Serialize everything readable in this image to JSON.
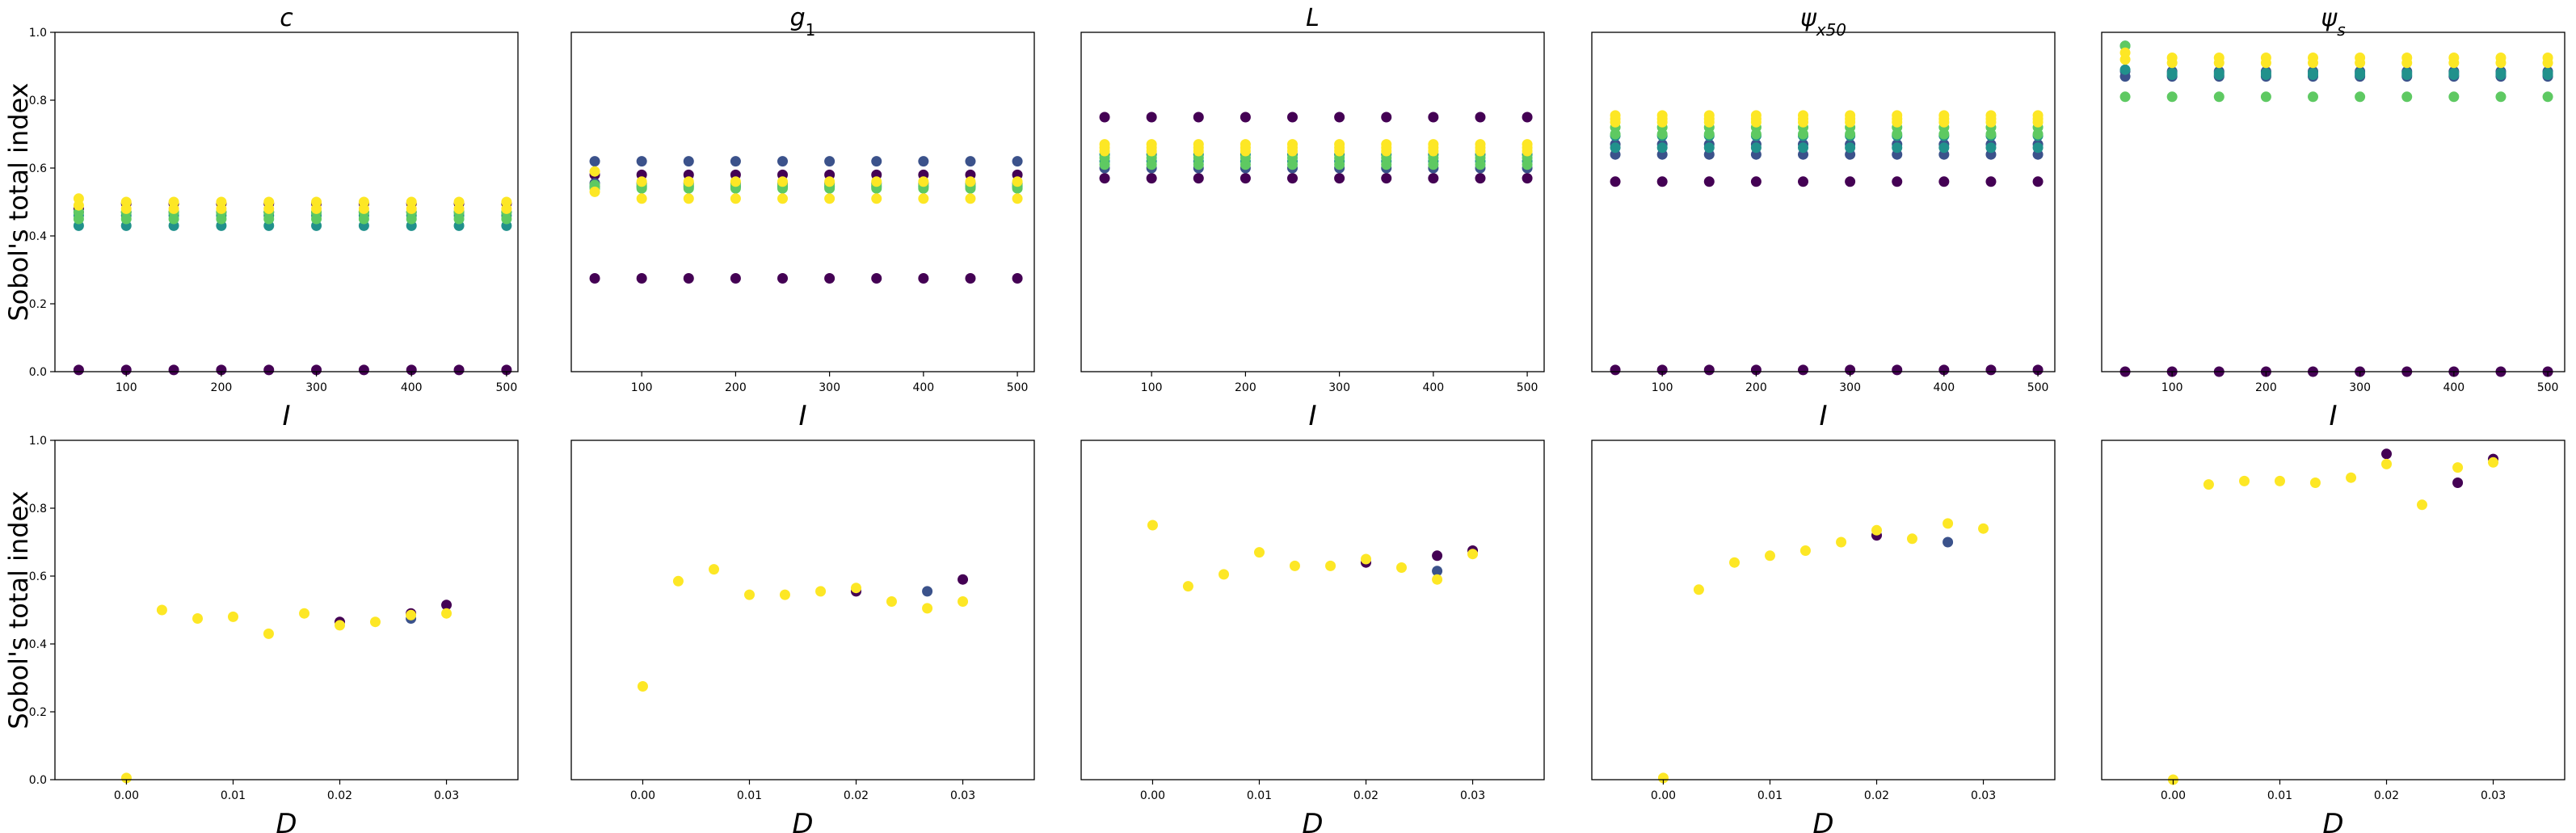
{
  "figure": {
    "ylabel": "Sobol's total index"
  },
  "colors": {
    "viridis": [
      "#440154",
      "#3b528b",
      "#21918c",
      "#5ec962",
      "#fde725"
    ]
  },
  "chart_data": [
    {
      "type": "scatter",
      "title": "c",
      "xlabel": "I",
      "ylabel": "Sobol's total index",
      "xlim": [
        25,
        512
      ],
      "ylim": [
        0,
        1
      ],
      "xticks": [
        100,
        200,
        300,
        400,
        500
      ],
      "yticks": [
        0.0,
        0.2,
        0.4,
        0.6,
        0.8,
        1.0
      ],
      "show_yticks": true,
      "x": [
        50,
        100,
        150,
        200,
        250,
        300,
        350,
        400,
        450,
        500
      ],
      "series": [
        {
          "color_index": 0,
          "y_start": [
            0.005,
            0.48
          ],
          "y": [
            0.005,
            0.495
          ]
        },
        {
          "color_index": 1,
          "y": [
            0.47
          ]
        },
        {
          "color_index": 2,
          "y": [
            0.43,
            0.46
          ]
        },
        {
          "color_index": 3,
          "y": [
            0.47,
            0.45
          ]
        },
        {
          "color_index": 4,
          "y_start": [
            0.51,
            0.49
          ],
          "y": [
            0.48,
            0.5
          ]
        }
      ]
    },
    {
      "type": "scatter",
      "title": "g1",
      "xlabel": "I",
      "ylabel": "",
      "xlim": [
        25,
        518
      ],
      "ylim": [
        0,
        1
      ],
      "xticks": [
        100,
        200,
        300,
        400,
        500
      ],
      "yticks": [],
      "show_yticks": false,
      "x": [
        50,
        100,
        150,
        200,
        250,
        300,
        350,
        400,
        450,
        500
      ],
      "series": [
        {
          "color_index": 0,
          "y": [
            0.275,
            0.58
          ]
        },
        {
          "color_index": 1,
          "y": [
            0.62,
            0.555
          ]
        },
        {
          "color_index": 2,
          "y": [
            0.545
          ]
        },
        {
          "color_index": 3,
          "y": [
            0.55,
            0.54
          ]
        },
        {
          "color_index": 4,
          "y_start": [
            0.59,
            0.53
          ],
          "y": [
            0.56,
            0.51
          ]
        }
      ]
    },
    {
      "type": "scatter",
      "title": "L",
      "xlabel": "I",
      "ylabel": "",
      "xlim": [
        25,
        518
      ],
      "ylim": [
        0,
        1
      ],
      "xticks": [
        100,
        200,
        300,
        400,
        500
      ],
      "yticks": [],
      "show_yticks": false,
      "x": [
        50,
        100,
        150,
        200,
        250,
        300,
        350,
        400,
        450,
        500
      ],
      "series": [
        {
          "color_index": 0,
          "y": [
            0.75,
            0.57
          ]
        },
        {
          "color_index": 1,
          "y": [
            0.6
          ]
        },
        {
          "color_index": 2,
          "y": [
            0.62,
            0.64
          ]
        },
        {
          "color_index": 3,
          "y": [
            0.63,
            0.61
          ]
        },
        {
          "color_index": 4,
          "y": [
            0.67,
            0.65,
            0.66
          ]
        }
      ]
    },
    {
      "type": "scatter",
      "title": "ψx50",
      "xlabel": "I",
      "ylabel": "",
      "xlim": [
        25,
        518
      ],
      "ylim": [
        0,
        1
      ],
      "xticks": [
        100,
        200,
        300,
        400,
        500
      ],
      "yticks": [],
      "show_yticks": false,
      "x": [
        50,
        100,
        150,
        200,
        250,
        300,
        350,
        400,
        450,
        500
      ],
      "series": [
        {
          "color_index": 0,
          "y": [
            0.005,
            0.56
          ]
        },
        {
          "color_index": 1,
          "y": [
            0.64,
            0.67
          ]
        },
        {
          "color_index": 2,
          "y": [
            0.66,
            0.695
          ]
        },
        {
          "color_index": 3,
          "y": [
            0.7,
            0.72
          ]
        },
        {
          "color_index": 4,
          "y": [
            0.745,
            0.735,
            0.755
          ]
        }
      ]
    },
    {
      "type": "scatter",
      "title": "ψs",
      "xlabel": "I",
      "ylabel": "",
      "xlim": [
        25,
        518
      ],
      "ylim": [
        0,
        1
      ],
      "xticks": [
        100,
        200,
        300,
        400,
        500
      ],
      "yticks": [],
      "show_yticks": false,
      "x": [
        50,
        100,
        150,
        200,
        250,
        300,
        350,
        400,
        450,
        500
      ],
      "series": [
        {
          "color_index": 0,
          "y": [
            0.0
          ]
        },
        {
          "color_index": 1,
          "y": [
            0.87,
            0.885
          ]
        },
        {
          "color_index": 2,
          "y_start": [
            0.96,
            0.89
          ],
          "y": [
            0.88,
            0.875
          ]
        },
        {
          "color_index": 3,
          "y_start": [
            0.96,
            0.81
          ],
          "y": [
            0.81
          ]
        },
        {
          "color_index": 4,
          "y_start": [
            0.94,
            0.92
          ],
          "y": [
            0.925,
            0.91
          ]
        }
      ]
    },
    {
      "type": "scatter",
      "title": "",
      "xlabel": "D",
      "ylabel": "Sobol's total index",
      "xlim": [
        -0.0067,
        0.0367
      ],
      "ylim": [
        0,
        1
      ],
      "xticks": [
        0.0,
        0.01,
        0.02,
        0.03
      ],
      "yticks": [
        0.0,
        0.2,
        0.4,
        0.6,
        0.8,
        1.0
      ],
      "show_yticks": true,
      "points": [
        {
          "x": 0.0,
          "y": 0.005,
          "c": 4
        },
        {
          "x": 0.00333,
          "y": 0.5,
          "c": 4
        },
        {
          "x": 0.00667,
          "y": 0.475,
          "c": 4
        },
        {
          "x": 0.01,
          "y": 0.48,
          "c": 4
        },
        {
          "x": 0.01333,
          "y": 0.43,
          "c": 4
        },
        {
          "x": 0.01667,
          "y": 0.49,
          "c": 4
        },
        {
          "x": 0.02,
          "y": 0.465,
          "c": 0
        },
        {
          "x": 0.02,
          "y": 0.455,
          "c": 4
        },
        {
          "x": 0.02333,
          "y": 0.465,
          "c": 4
        },
        {
          "x": 0.02667,
          "y": 0.49,
          "c": 0
        },
        {
          "x": 0.02667,
          "y": 0.475,
          "c": 1
        },
        {
          "x": 0.02667,
          "y": 0.485,
          "c": 4
        },
        {
          "x": 0.03,
          "y": 0.515,
          "c": 0
        },
        {
          "x": 0.03,
          "y": 0.49,
          "c": 4
        }
      ]
    },
    {
      "type": "scatter",
      "title": "",
      "xlabel": "D",
      "ylabel": "",
      "xlim": [
        -0.0067,
        0.0367
      ],
      "ylim": [
        0,
        1
      ],
      "xticks": [
        0.0,
        0.01,
        0.02,
        0.03
      ],
      "yticks": [],
      "show_yticks": false,
      "points": [
        {
          "x": 0.0,
          "y": 0.275,
          "c": 4
        },
        {
          "x": 0.00333,
          "y": 0.585,
          "c": 4
        },
        {
          "x": 0.00667,
          "y": 0.62,
          "c": 4
        },
        {
          "x": 0.01,
          "y": 0.545,
          "c": 4
        },
        {
          "x": 0.01333,
          "y": 0.545,
          "c": 4
        },
        {
          "x": 0.01667,
          "y": 0.555,
          "c": 4
        },
        {
          "x": 0.02,
          "y": 0.555,
          "c": 0
        },
        {
          "x": 0.02,
          "y": 0.565,
          "c": 4
        },
        {
          "x": 0.02333,
          "y": 0.525,
          "c": 4
        },
        {
          "x": 0.02667,
          "y": 0.555,
          "c": 1
        },
        {
          "x": 0.02667,
          "y": 0.505,
          "c": 4
        },
        {
          "x": 0.03,
          "y": 0.59,
          "c": 0
        },
        {
          "x": 0.03,
          "y": 0.525,
          "c": 4
        }
      ]
    },
    {
      "type": "scatter",
      "title": "",
      "xlabel": "D",
      "ylabel": "",
      "xlim": [
        -0.0067,
        0.0367
      ],
      "ylim": [
        0,
        1
      ],
      "xticks": [
        0.0,
        0.01,
        0.02,
        0.03
      ],
      "yticks": [],
      "show_yticks": false,
      "points": [
        {
          "x": 0.0,
          "y": 0.75,
          "c": 4
        },
        {
          "x": 0.00333,
          "y": 0.57,
          "c": 4
        },
        {
          "x": 0.00667,
          "y": 0.605,
          "c": 4
        },
        {
          "x": 0.01,
          "y": 0.67,
          "c": 4
        },
        {
          "x": 0.01333,
          "y": 0.63,
          "c": 4
        },
        {
          "x": 0.01667,
          "y": 0.63,
          "c": 4
        },
        {
          "x": 0.02,
          "y": 0.64,
          "c": 0
        },
        {
          "x": 0.02,
          "y": 0.65,
          "c": 4
        },
        {
          "x": 0.02333,
          "y": 0.625,
          "c": 4
        },
        {
          "x": 0.02667,
          "y": 0.66,
          "c": 0
        },
        {
          "x": 0.02667,
          "y": 0.615,
          "c": 1
        },
        {
          "x": 0.02667,
          "y": 0.59,
          "c": 4
        },
        {
          "x": 0.03,
          "y": 0.675,
          "c": 0
        },
        {
          "x": 0.03,
          "y": 0.665,
          "c": 4
        }
      ]
    },
    {
      "type": "scatter",
      "title": "",
      "xlabel": "D",
      "ylabel": "",
      "xlim": [
        -0.0067,
        0.0367
      ],
      "ylim": [
        0,
        1
      ],
      "xticks": [
        0.0,
        0.01,
        0.02,
        0.03
      ],
      "yticks": [],
      "show_yticks": false,
      "points": [
        {
          "x": 0.0,
          "y": 0.005,
          "c": 4
        },
        {
          "x": 0.00333,
          "y": 0.56,
          "c": 4
        },
        {
          "x": 0.00667,
          "y": 0.64,
          "c": 4
        },
        {
          "x": 0.01,
          "y": 0.66,
          "c": 4
        },
        {
          "x": 0.01333,
          "y": 0.675,
          "c": 4
        },
        {
          "x": 0.01667,
          "y": 0.7,
          "c": 4
        },
        {
          "x": 0.02,
          "y": 0.72,
          "c": 0
        },
        {
          "x": 0.02,
          "y": 0.735,
          "c": 4
        },
        {
          "x": 0.02333,
          "y": 0.71,
          "c": 4
        },
        {
          "x": 0.02667,
          "y": 0.7,
          "c": 1
        },
        {
          "x": 0.02667,
          "y": 0.755,
          "c": 4
        },
        {
          "x": 0.03,
          "y": 0.74,
          "c": 4
        }
      ]
    },
    {
      "type": "scatter",
      "title": "",
      "xlabel": "D",
      "ylabel": "",
      "xlim": [
        -0.0067,
        0.0367
      ],
      "ylim": [
        0,
        1
      ],
      "xticks": [
        0.0,
        0.01,
        0.02,
        0.03
      ],
      "yticks": [],
      "show_yticks": false,
      "points": [
        {
          "x": 0.0,
          "y": 0.0,
          "c": 4
        },
        {
          "x": 0.00333,
          "y": 0.87,
          "c": 4
        },
        {
          "x": 0.00667,
          "y": 0.88,
          "c": 4
        },
        {
          "x": 0.01,
          "y": 0.88,
          "c": 4
        },
        {
          "x": 0.01333,
          "y": 0.875,
          "c": 4
        },
        {
          "x": 0.01667,
          "y": 0.89,
          "c": 4
        },
        {
          "x": 0.02,
          "y": 0.96,
          "c": 0
        },
        {
          "x": 0.02,
          "y": 0.93,
          "c": 4
        },
        {
          "x": 0.02333,
          "y": 0.81,
          "c": 4
        },
        {
          "x": 0.02667,
          "y": 0.875,
          "c": 0
        },
        {
          "x": 0.02667,
          "y": 0.92,
          "c": 4
        },
        {
          "x": 0.03,
          "y": 0.945,
          "c": 0
        },
        {
          "x": 0.03,
          "y": 0.935,
          "c": 4
        }
      ]
    }
  ]
}
